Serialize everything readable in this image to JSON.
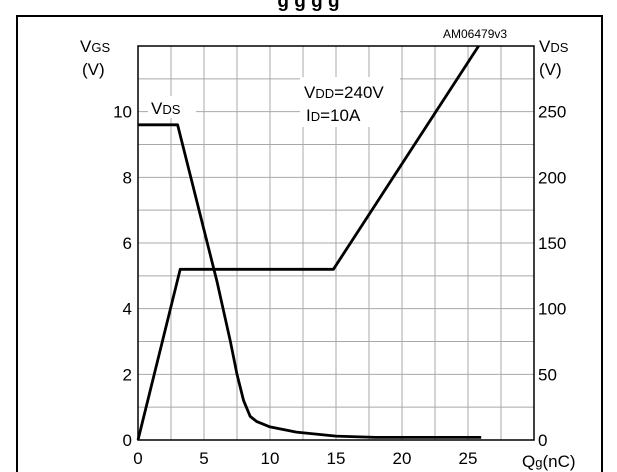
{
  "title_fragment": "g           g g           g",
  "chart_data": {
    "type": "line",
    "annotation_code": "AM06479v3",
    "conditions": [
      "VDD=240V",
      "ID=10A"
    ],
    "left_axis": {
      "label_main": "V",
      "label_sub": "GS",
      "unit": "(V)",
      "ylim": [
        0,
        12
      ],
      "ticks": [
        0,
        2,
        4,
        6,
        8,
        10
      ],
      "tick_labels": [
        "0",
        "2",
        "4",
        "6",
        "8",
        "10"
      ]
    },
    "right_axis": {
      "label_main": "V",
      "label_sub": "DS",
      "unit": "(V)",
      "ylim": [
        0,
        300
      ],
      "ticks": [
        0,
        50,
        100,
        150,
        200,
        250
      ],
      "tick_labels": [
        "0",
        "50",
        "100",
        "150",
        "200",
        "250"
      ]
    },
    "x_axis": {
      "label_main": "Q",
      "label_sub": "g",
      "unit": "(nC)",
      "xlim": [
        0,
        30
      ],
      "ticks": [
        0,
        5,
        10,
        15,
        20,
        25
      ],
      "tick_labels": [
        "0",
        "5",
        "10",
        "15",
        "20",
        "25"
      ]
    },
    "grid": true,
    "series": [
      {
        "axis": "left",
        "x": [
          0,
          3.2,
          14.8,
          25.8
        ],
        "y": [
          0,
          5.2,
          5.2,
          12
        ]
      },
      {
        "name": "VDS",
        "axis": "right",
        "x": [
          0,
          3.0,
          4.0,
          5.0,
          6.0,
          7.0,
          7.5,
          8.0,
          8.5,
          9.0,
          10,
          12,
          15,
          18,
          21,
          24,
          26
        ],
        "y": [
          240,
          240,
          200,
          160,
          120,
          75,
          50,
          30,
          18,
          14,
          10,
          6,
          3,
          2,
          2,
          2,
          2
        ]
      }
    ],
    "series_label": {
      "main": "V",
      "sub": "DS"
    }
  }
}
